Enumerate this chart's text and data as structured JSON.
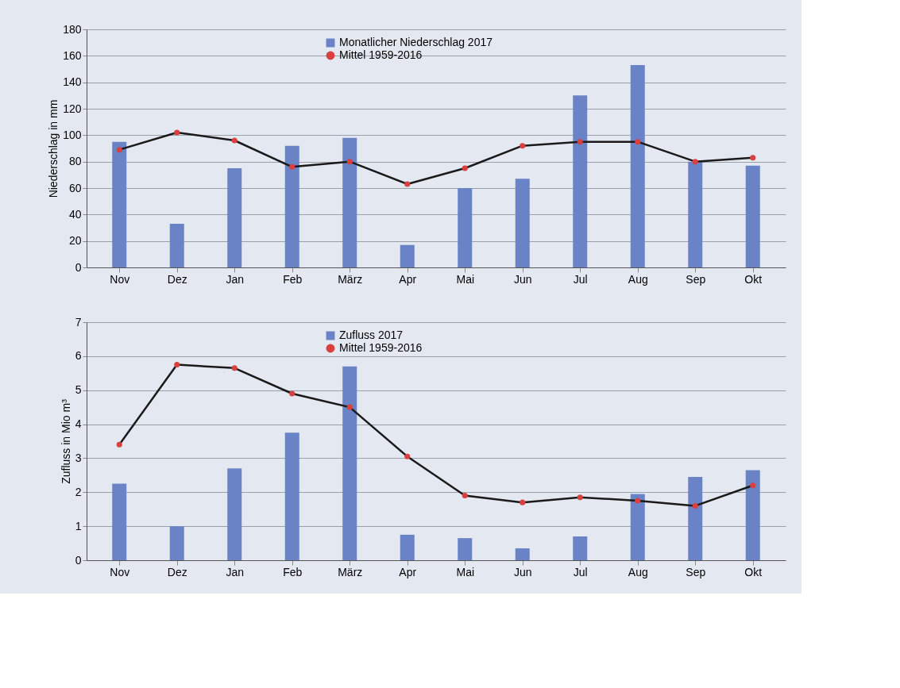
{
  "chart_data": [
    {
      "type": "bar",
      "ylabel": "Niederschlag in mm",
      "categories": [
        "Nov",
        "Dez",
        "Jan",
        "Feb",
        "März",
        "Apr",
        "Mai",
        "Jun",
        "Jul",
        "Aug",
        "Sep",
        "Okt"
      ],
      "series": [
        {
          "name": "Monatlicher Niederschlag 2017",
          "color": "#6a83c6",
          "values": [
            95,
            33,
            75,
            92,
            98,
            17,
            60,
            67,
            130,
            153,
            80,
            77
          ]
        },
        {
          "name": "Mittel 1959-2016",
          "type": "line",
          "color": "#d9403f",
          "values": [
            89,
            102,
            96,
            76,
            80,
            63,
            75,
            92,
            95,
            95,
            80,
            83
          ]
        }
      ],
      "ylim": [
        0,
        180
      ],
      "yticks": [
        0,
        20,
        40,
        60,
        80,
        100,
        120,
        140,
        160,
        180
      ],
      "grid": "y",
      "legend": "top",
      "marker": "circle"
    },
    {
      "type": "bar",
      "ylabel": "Zufluss in Mio m³",
      "categories": [
        "Nov",
        "Dez",
        "Jan",
        "Feb",
        "März",
        "Apr",
        "Mai",
        "Jun",
        "Jul",
        "Aug",
        "Sep",
        "Okt"
      ],
      "series": [
        {
          "name": "Zufluss 2017",
          "color": "#6a83c6",
          "values": [
            2.25,
            1.0,
            2.7,
            3.75,
            5.7,
            0.75,
            0.65,
            0.35,
            0.7,
            1.95,
            2.45,
            2.65
          ]
        },
        {
          "name": "Mittel 1959-2016",
          "type": "line",
          "color": "#d9403f",
          "values": [
            3.4,
            5.75,
            5.65,
            4.9,
            4.5,
            3.05,
            1.9,
            1.7,
            1.85,
            1.75,
            1.6,
            2.2
          ]
        }
      ],
      "ylim": [
        0,
        7
      ],
      "yticks": [
        0,
        1,
        2,
        3,
        4,
        5,
        6,
        7
      ],
      "grid": "y",
      "legend": "top",
      "marker": "circle"
    }
  ]
}
